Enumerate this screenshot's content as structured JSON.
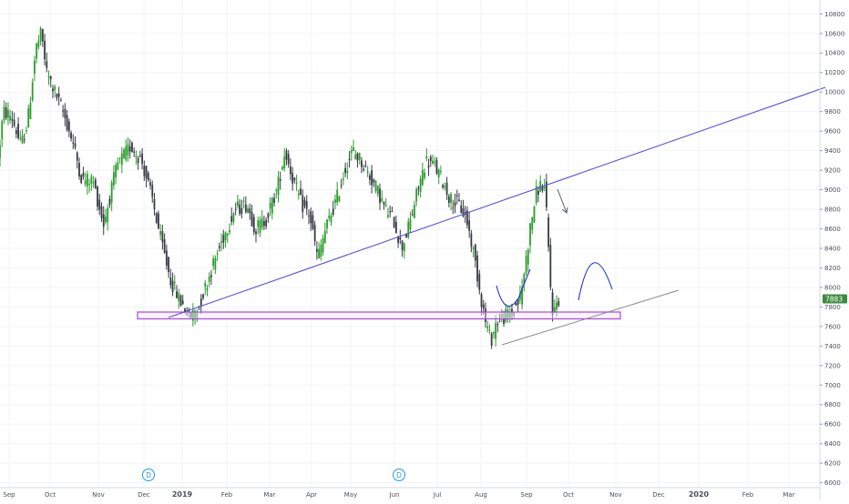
{
  "colors": {
    "up_candle": "#2a9d2a",
    "down_candle": "#363a45",
    "trendline_blue": "#5a4fe0",
    "support_box": "#b040e8",
    "support_box_fill": "#f3e4fb",
    "lower_trend": "#8a8a8a",
    "arc": "#2233cc",
    "price_badge": "#3d8b3d",
    "axis_text": "#4a4f5c",
    "grid": "#f1f3f6",
    "event_badge": "#2196f3"
  },
  "chart_data": {
    "type": "candlestick",
    "y_axis_ticks": [
      6000,
      6200,
      6400,
      6600,
      6800,
      7000,
      7200,
      7400,
      7600,
      7800,
      8000,
      8200,
      8400,
      8600,
      8800,
      9000,
      9200,
      9400,
      9600,
      9800,
      10000,
      10200,
      10400,
      10600,
      10800
    ],
    "x_axis_labels": [
      "Sep",
      "Oct",
      "Nov",
      "Dec",
      "2019",
      "Feb",
      "Mar",
      "Apr",
      "May",
      "Jun",
      "Jul",
      "Aug",
      "Sep",
      "Oct",
      "Nov",
      "Dec",
      "2020",
      "Feb",
      "Mar"
    ],
    "ylim": [
      5930,
      10930
    ],
    "last_price": "7883",
    "event_markers": [
      "D",
      "D"
    ],
    "price_path": [
      {
        "day": 0,
        "price": 9300
      },
      {
        "day": 4,
        "price": 9800
      },
      {
        "day": 10,
        "price": 9750
      },
      {
        "day": 17,
        "price": 9450
      },
      {
        "day": 22,
        "price": 9700
      },
      {
        "day": 28,
        "price": 10450
      },
      {
        "day": 32,
        "price": 10600
      },
      {
        "day": 36,
        "price": 10200
      },
      {
        "day": 42,
        "price": 10000
      },
      {
        "day": 48,
        "price": 9800
      },
      {
        "day": 55,
        "price": 9500
      },
      {
        "day": 62,
        "price": 9100
      },
      {
        "day": 70,
        "price": 9100
      },
      {
        "day": 78,
        "price": 8650
      },
      {
        "day": 88,
        "price": 9250
      },
      {
        "day": 98,
        "price": 9450
      },
      {
        "day": 106,
        "price": 9300
      },
      {
        "day": 114,
        "price": 8900
      },
      {
        "day": 120,
        "price": 8500
      },
      {
        "day": 128,
        "price": 8050
      },
      {
        "day": 135,
        "price": 7850
      },
      {
        "day": 142,
        "price": 7700
      },
      {
        "day": 148,
        "price": 7800
      },
      {
        "day": 158,
        "price": 8200
      },
      {
        "day": 166,
        "price": 8500
      },
      {
        "day": 175,
        "price": 8800
      },
      {
        "day": 184,
        "price": 8850
      },
      {
        "day": 190,
        "price": 8600
      },
      {
        "day": 198,
        "price": 8700
      },
      {
        "day": 206,
        "price": 9000
      },
      {
        "day": 212,
        "price": 9400
      },
      {
        "day": 218,
        "price": 9100
      },
      {
        "day": 224,
        "price": 8850
      },
      {
        "day": 230,
        "price": 8750
      },
      {
        "day": 236,
        "price": 8300
      },
      {
        "day": 242,
        "price": 8600
      },
      {
        "day": 250,
        "price": 8900
      },
      {
        "day": 256,
        "price": 9200
      },
      {
        "day": 262,
        "price": 9400
      },
      {
        "day": 268,
        "price": 9300
      },
      {
        "day": 274,
        "price": 9150
      },
      {
        "day": 280,
        "price": 9000
      },
      {
        "day": 286,
        "price": 8800
      },
      {
        "day": 292,
        "price": 8700
      },
      {
        "day": 298,
        "price": 8400
      },
      {
        "day": 304,
        "price": 8650
      },
      {
        "day": 310,
        "price": 9000
      },
      {
        "day": 316,
        "price": 9300
      },
      {
        "day": 322,
        "price": 9250
      },
      {
        "day": 328,
        "price": 9100
      },
      {
        "day": 334,
        "price": 8900
      },
      {
        "day": 340,
        "price": 8850
      },
      {
        "day": 346,
        "price": 8700
      },
      {
        "day": 352,
        "price": 8300
      },
      {
        "day": 356,
        "price": 7950
      },
      {
        "day": 360,
        "price": 7650
      },
      {
        "day": 364,
        "price": 7450
      },
      {
        "day": 368,
        "price": 7650
      },
      {
        "day": 374,
        "price": 7700
      },
      {
        "day": 380,
        "price": 7750
      },
      {
        "day": 386,
        "price": 7900
      },
      {
        "day": 390,
        "price": 8300
      },
      {
        "day": 394,
        "price": 8700
      },
      {
        "day": 398,
        "price": 9000
      },
      {
        "day": 401,
        "price": 9050
      },
      {
        "day": 404,
        "price": 9000
      },
      {
        "day": 406,
        "price": 8500
      },
      {
        "day": 408,
        "price": 8000
      },
      {
        "day": 410,
        "price": 7700
      },
      {
        "day": 413,
        "price": 7880
      }
    ]
  }
}
